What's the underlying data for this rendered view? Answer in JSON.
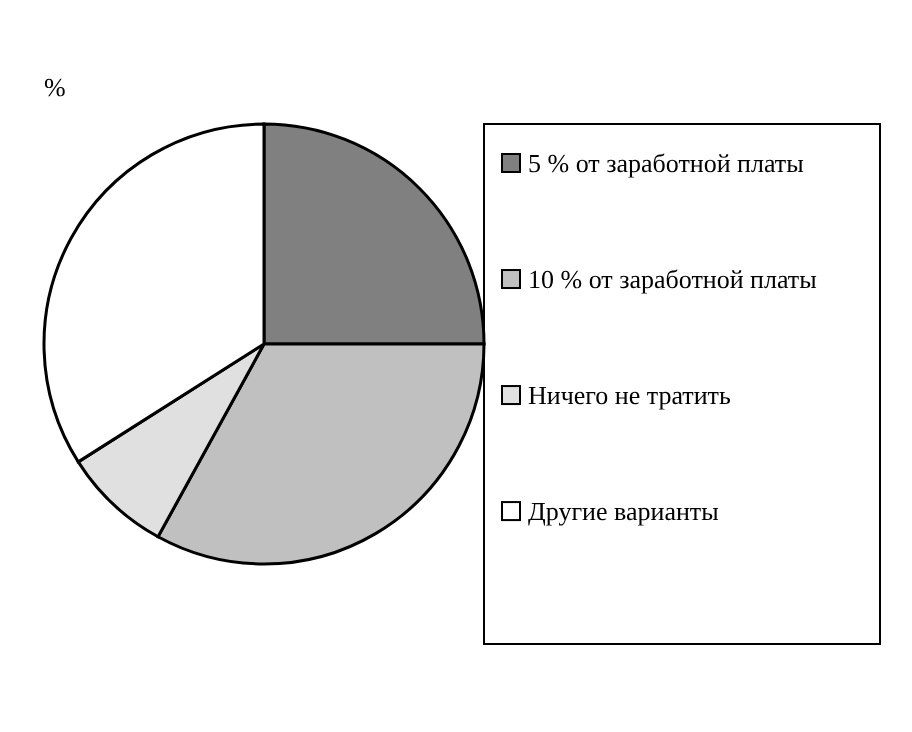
{
  "chart_data": {
    "type": "pie",
    "title": "%",
    "categories": [
      "5 % от заработной платы",
      "10 % от заработной платы",
      "Ничего не тратить",
      "Другие варианты"
    ],
    "values": [
      25,
      33,
      8,
      34
    ],
    "colors": [
      "#808080",
      "#c0c0c0",
      "#e0e0e0",
      "#ffffff"
    ],
    "legend": "right"
  }
}
